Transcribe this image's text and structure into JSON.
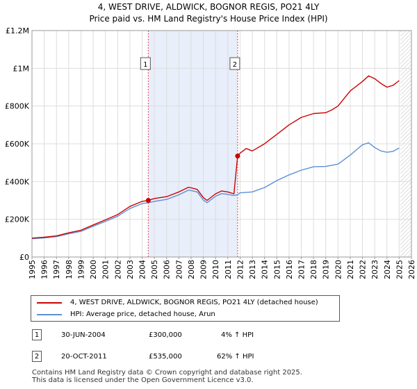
{
  "chart_data": {
    "type": "line",
    "title": "4, WEST DRIVE, ALDWICK, BOGNOR REGIS, PO21 4LY",
    "subtitle": "Price paid vs. HM Land Registry's House Price Index (HPI)",
    "xlabel": "",
    "ylabel": "",
    "xlim": [
      1995,
      2026
    ],
    "ylim": [
      0,
      1200000
    ],
    "x_ticks": [
      1995,
      1996,
      1997,
      1998,
      1999,
      2000,
      2001,
      2002,
      2003,
      2004,
      2005,
      2006,
      2007,
      2008,
      2009,
      2010,
      2011,
      2012,
      2013,
      2014,
      2015,
      2016,
      2017,
      2018,
      2019,
      2020,
      2021,
      2022,
      2023,
      2024,
      2025,
      2026
    ],
    "y_ticks": [
      {
        "value": 0,
        "label": "£0"
      },
      {
        "value": 200000,
        "label": "£200K"
      },
      {
        "value": 400000,
        "label": "£400K"
      },
      {
        "value": 600000,
        "label": "£600K"
      },
      {
        "value": 800000,
        "label": "£800K"
      },
      {
        "value": 1000000,
        "label": "£1M"
      },
      {
        "value": 1200000,
        "label": "£1.2M"
      }
    ],
    "grid": true,
    "shaded_region": [
      2004.5,
      2011.8
    ],
    "forecast_from": 2025.1,
    "series": [
      {
        "name": "4, WEST DRIVE, ALDWICK, BOGNOR REGIS, PO21 4LY (detached house)",
        "color": "#cc0000",
        "x": [
          1995,
          1996,
          1997,
          1998,
          1999,
          2000,
          2001,
          2002,
          2003,
          2004,
          2004.5,
          2005,
          2006,
          2007,
          2007.8,
          2008.5,
          2009,
          2009.3,
          2010,
          2010.5,
          2011,
          2011.5,
          2011.8,
          2012,
          2012.5,
          2013,
          2014,
          2015,
          2016,
          2017,
          2018,
          2019,
          2019.5,
          2020,
          2021,
          2022,
          2022.5,
          2023,
          2023.5,
          2024,
          2024.5,
          2025
        ],
        "values": [
          100000,
          105000,
          112000,
          128000,
          142000,
          170000,
          197000,
          225000,
          268000,
          295000,
          300000,
          310000,
          320000,
          345000,
          370000,
          358000,
          315000,
          300000,
          335000,
          350000,
          345000,
          335000,
          535000,
          550000,
          575000,
          562000,
          600000,
          650000,
          700000,
          740000,
          760000,
          765000,
          780000,
          800000,
          880000,
          930000,
          960000,
          945000,
          920000,
          900000,
          910000,
          935000
        ]
      },
      {
        "name": "HPI: Average price, detached house, Arun",
        "color": "#5b8fd4",
        "x": [
          1995,
          1996,
          1997,
          1998,
          1999,
          2000,
          2001,
          2002,
          2003,
          2004,
          2004.5,
          2005,
          2006,
          2007,
          2007.8,
          2008.5,
          2009,
          2009.3,
          2010,
          2010.5,
          2011,
          2011.5,
          2011.8,
          2012,
          2013,
          2014,
          2015,
          2016,
          2017,
          2018,
          2019,
          2020,
          2021,
          2022,
          2022.5,
          2023,
          2023.5,
          2024,
          2024.5,
          2025
        ],
        "values": [
          97000,
          101000,
          108000,
          123000,
          136000,
          163000,
          189000,
          216000,
          257000,
          283000,
          288000,
          295000,
          305000,
          330000,
          355000,
          345000,
          302000,
          288000,
          322000,
          336000,
          332000,
          326000,
          330000,
          340000,
          345000,
          368000,
          405000,
          435000,
          460000,
          478000,
          480000,
          492000,
          540000,
          595000,
          605000,
          580000,
          562000,
          555000,
          560000,
          578000
        ]
      }
    ],
    "markers": [
      {
        "label": "1",
        "x": 2004.5,
        "value": 300000
      },
      {
        "label": "2",
        "x": 2011.8,
        "value": 535000
      }
    ]
  },
  "legend": {
    "series1": "4, WEST DRIVE, ALDWICK, BOGNOR REGIS, PO21 4LY (detached house)",
    "series2": "HPI: Average price, detached house, Arun"
  },
  "transactions": [
    {
      "num": "1",
      "date": "30-JUN-2004",
      "price": "£300,000",
      "hpi": "4% ↑ HPI"
    },
    {
      "num": "2",
      "date": "20-OCT-2011",
      "price": "£535,000",
      "hpi": "62% ↑ HPI"
    }
  ],
  "footer": {
    "line1": "Contains HM Land Registry data © Crown copyright and database right 2025.",
    "line2": "This data is licensed under the Open Government Licence v3.0."
  },
  "colors": {
    "property_line": "#cc0000",
    "hpi_line": "#5b8fd4",
    "shade": "#e8eefa",
    "grid": "#dddddd"
  }
}
